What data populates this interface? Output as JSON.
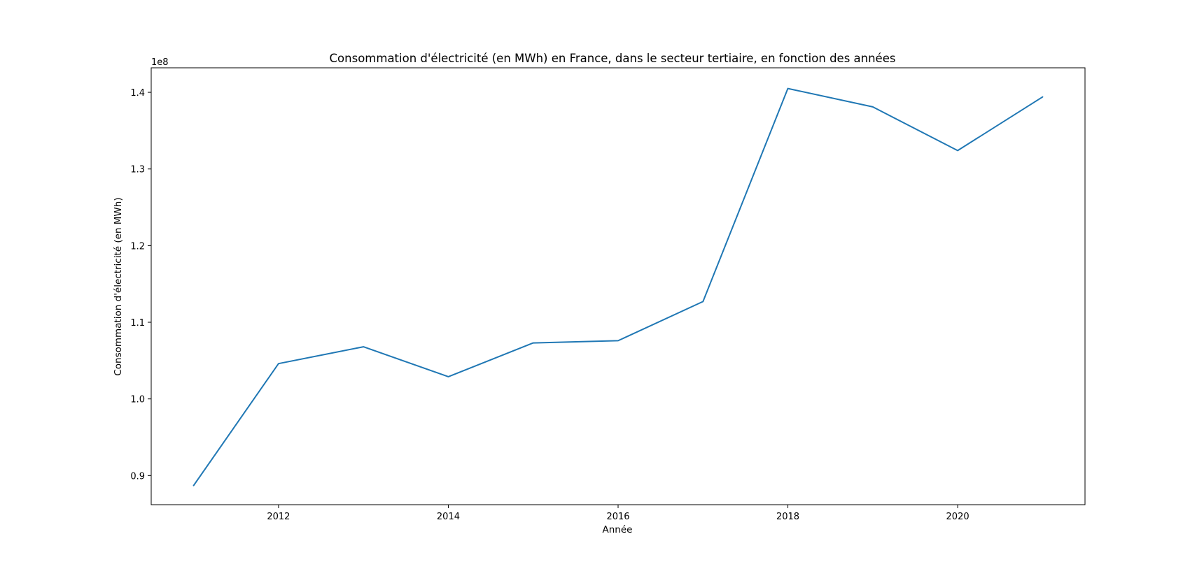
{
  "chart_data": {
    "type": "line",
    "title": "Consommation d'électricité (en MWh) en France, dans le secteur tertiaire, en fonction des années",
    "xlabel": "Année",
    "ylabel": "Consommation d'électricité (en MWh)",
    "y_offset_label": "1e8",
    "xlim": [
      2010.5,
      2021.5
    ],
    "ylim": [
      86200000,
      143200000
    ],
    "x_ticks": [
      2012,
      2014,
      2016,
      2018,
      2020
    ],
    "x_tick_labels": [
      "2012",
      "2014",
      "2016",
      "2018",
      "2020"
    ],
    "y_ticks": [
      90000000,
      100000000,
      110000000,
      120000000,
      130000000,
      140000000
    ],
    "y_tick_labels": [
      "0.9",
      "1.0",
      "1.1",
      "1.2",
      "1.3",
      "1.4"
    ],
    "grid": false,
    "series": [
      {
        "color": "#1f77b4",
        "x": [
          2011,
          2012,
          2013,
          2014,
          2015,
          2016,
          2017,
          2018,
          2019,
          2020,
          2021
        ],
        "y": [
          88700000,
          104600000,
          106800000,
          102900000,
          107300000,
          107600000,
          112700000,
          140500000,
          138100000,
          132400000,
          139400000
        ]
      }
    ]
  }
}
